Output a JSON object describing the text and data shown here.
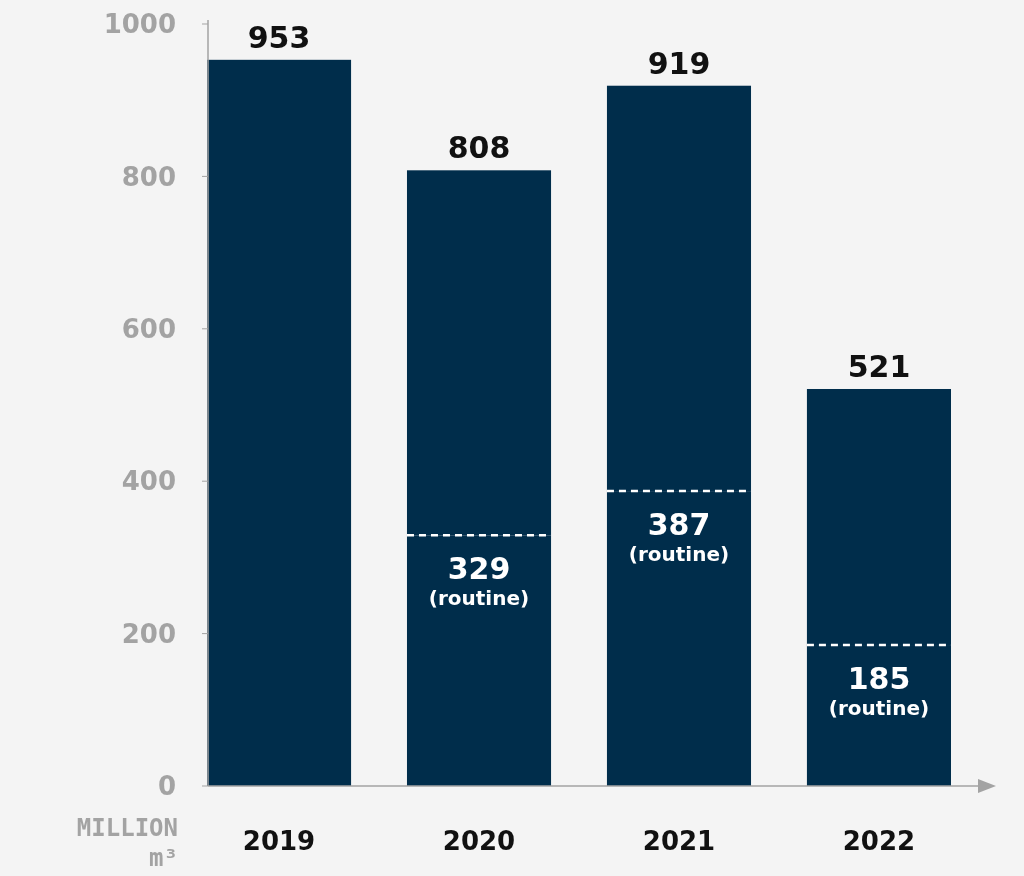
{
  "chart_data": {
    "type": "bar",
    "ylabel": "MILLION m³",
    "stacked": true,
    "categories": [
      "2019",
      "2020",
      "2021",
      "2022"
    ],
    "series": [
      {
        "color": "#002d4b",
        "values": [
          null,
          329,
          387,
          185
        ],
        "value_labels": [
          null,
          "329\n(routine)",
          "387\n(routine)",
          "185\n(routine)"
        ]
      },
      {
        "color": "#002d4b",
        "values": [
          953,
          479,
          532,
          336
        ]
      }
    ],
    "totals": [
      "953",
      "808",
      "919",
      "521"
    ],
    "ylim": [
      0,
      1000
    ],
    "yticks": [
      0,
      200,
      400,
      600,
      800,
      1000
    ]
  }
}
